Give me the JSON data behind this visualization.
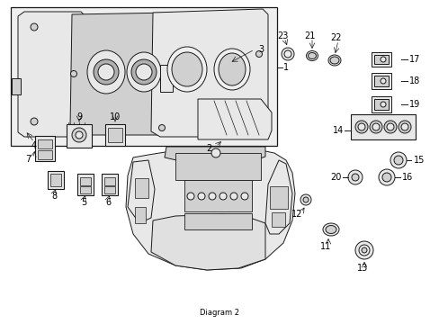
{
  "bg_color": "#ffffff",
  "fig_width": 4.89,
  "fig_height": 3.6,
  "dpi": 100,
  "line_color": "#1a1a1a",
  "line_width": 0.7,
  "fill_light": "#e8e8e8",
  "fill_mid": "#d0d0d0",
  "fill_dark": "#b0b0b0",
  "fill_box_bg": "#efefef"
}
